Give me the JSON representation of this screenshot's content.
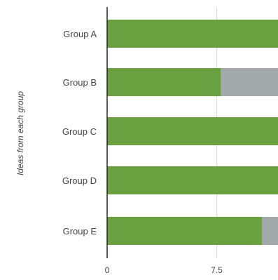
{
  "chart_data": {
    "type": "bar",
    "orientation": "horizontal",
    "stacked": true,
    "title": "",
    "xlabel": "",
    "ylabel": "Ideas from each group",
    "categories": [
      "Group A",
      "Group B",
      "Group C",
      "Group D",
      "Group E"
    ],
    "series": [
      {
        "values": [
          11.7,
          7.8,
          11.7,
          11.7,
          10.6
        ]
      },
      {
        "values": [
          0.0,
          3.9,
          0.0,
          0.0,
          1.1
        ]
      }
    ],
    "x_ticks": [
      "0",
      "7.5"
    ],
    "xlim": [
      0,
      11.7
    ],
    "grid": {
      "vertical": true
    },
    "colors": {
      "series": [
        "#6aa040",
        "#a3a8ab"
      ],
      "axis": "#222222",
      "grid": "#d6d6d6",
      "text": "#444444"
    }
  }
}
